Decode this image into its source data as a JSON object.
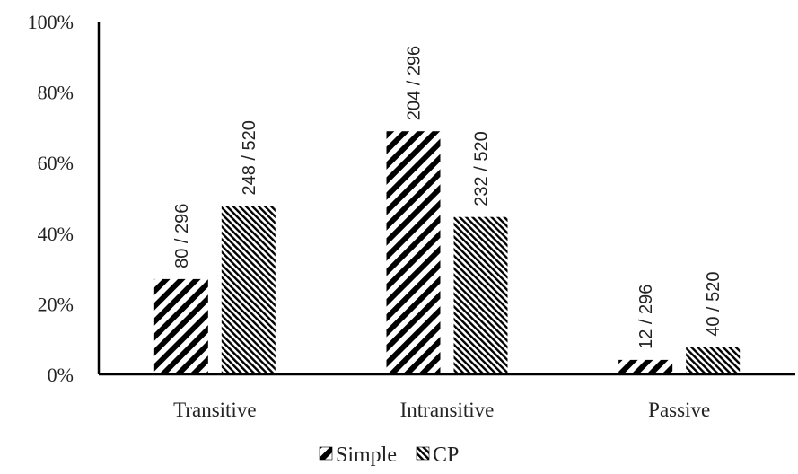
{
  "chart_data": {
    "type": "bar",
    "title": "",
    "xlabel": "",
    "ylabel": "",
    "ylim": [
      0,
      100
    ],
    "y_unit": "%",
    "y_ticks": [
      "0%",
      "20%",
      "40%",
      "60%",
      "80%",
      "100%"
    ],
    "grid": false,
    "legend_position": "bottom",
    "categories": [
      "Transitive",
      "Intransitive",
      "Passive"
    ],
    "series": [
      {
        "name": "Simple",
        "pattern": "wide-diagonal-stripes",
        "color": "#000000",
        "values": [
          27.0,
          68.9,
          4.1
        ],
        "labels": [
          "80 / 296",
          "204 / 296",
          "12 / 296"
        ]
      },
      {
        "name": "CP",
        "pattern": "fine-diagonal-stripes",
        "color": "#000000",
        "values": [
          47.7,
          44.6,
          7.7
        ],
        "labels": [
          "248 / 520",
          "232 / 520",
          "40 / 520"
        ]
      }
    ]
  }
}
